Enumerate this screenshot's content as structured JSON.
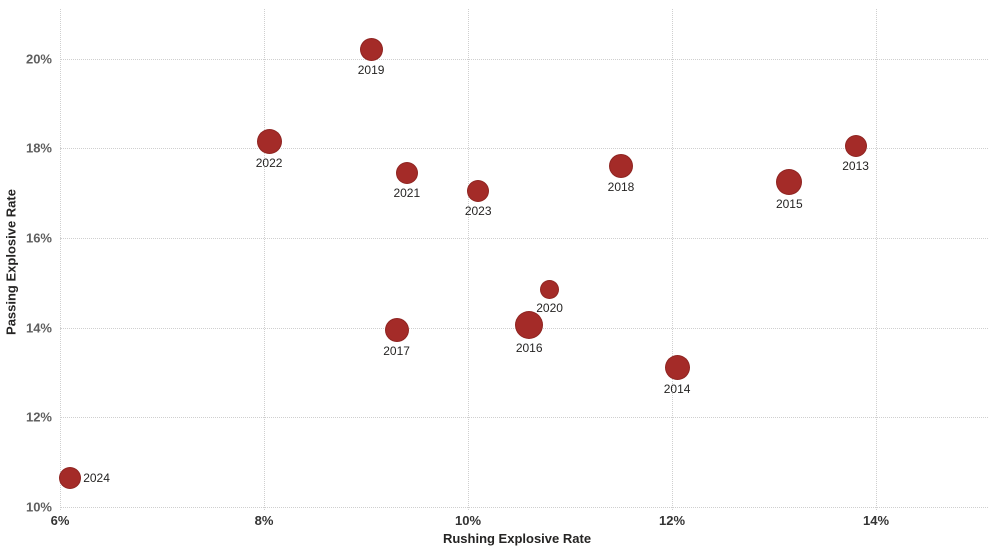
{
  "chart_data": {
    "type": "scatter",
    "title": "",
    "xlabel": "Rushing Explosive Rate",
    "ylabel": "Passing Explosive Rate",
    "x_ticks": [
      6,
      8,
      10,
      12,
      14
    ],
    "x_tick_labels": [
      "6%",
      "8%",
      "10%",
      "12%",
      "14%"
    ],
    "y_ticks": [
      10,
      12,
      14,
      16,
      18,
      20
    ],
    "y_tick_labels": [
      "10%",
      "12%",
      "14%",
      "16%",
      "18%",
      "20%"
    ],
    "xlim": [
      6,
      15.1
    ],
    "ylim": [
      10,
      21.1
    ],
    "grid": "dotted",
    "legend": "none",
    "point_color": "#A42B28",
    "gridline_color": "#cfcfcf",
    "points": [
      {
        "year": "2013",
        "x": 13.8,
        "y": 18.05,
        "size": 22,
        "label_pos": "below"
      },
      {
        "year": "2014",
        "x": 12.05,
        "y": 13.1,
        "size": 25,
        "label_pos": "below"
      },
      {
        "year": "2015",
        "x": 13.15,
        "y": 17.25,
        "size": 26,
        "label_pos": "below"
      },
      {
        "year": "2016",
        "x": 10.6,
        "y": 14.05,
        "size": 28,
        "label_pos": "below"
      },
      {
        "year": "2017",
        "x": 9.3,
        "y": 13.95,
        "size": 24,
        "label_pos": "below"
      },
      {
        "year": "2018",
        "x": 11.5,
        "y": 17.6,
        "size": 24,
        "label_pos": "below"
      },
      {
        "year": "2019",
        "x": 9.05,
        "y": 20.2,
        "size": 23,
        "label_pos": "below"
      },
      {
        "year": "2020",
        "x": 10.8,
        "y": 14.85,
        "size": 19,
        "label_pos": "below"
      },
      {
        "year": "2021",
        "x": 9.4,
        "y": 17.45,
        "size": 22,
        "label_pos": "below"
      },
      {
        "year": "2022",
        "x": 8.05,
        "y": 18.15,
        "size": 25,
        "label_pos": "below"
      },
      {
        "year": "2023",
        "x": 10.1,
        "y": 17.05,
        "size": 22,
        "label_pos": "below"
      },
      {
        "year": "2024",
        "x": 6.1,
        "y": 10.65,
        "size": 22,
        "label_pos": "right"
      }
    ]
  }
}
